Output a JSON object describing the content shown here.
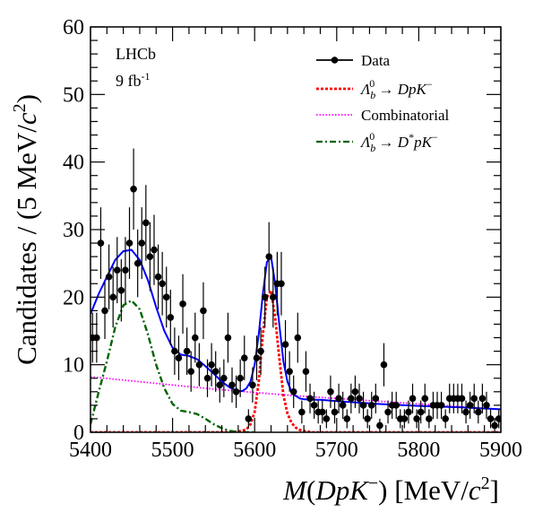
{
  "chart_data": {
    "type": "scatter",
    "xlabel": "M(DpK⁻) [MeV/c²]",
    "ylabel": "Candidates / (5 MeV/c²)",
    "xlim": [
      5400,
      5900
    ],
    "ylim": [
      0,
      60
    ],
    "xticks": [
      "5400",
      "5500",
      "5600",
      "5700",
      "5800",
      "5900"
    ],
    "yticks": [
      "0",
      "10",
      "20",
      "30",
      "40",
      "50",
      "60"
    ],
    "annotations": [
      "LHCb",
      "9 fb⁻¹"
    ],
    "legend": {
      "placement": "top-right",
      "entries": [
        "Data",
        "Λ⁰b → DpK⁻",
        "Combinatorial",
        "Λ⁰b → D*pK⁻"
      ]
    },
    "series": [
      {
        "name": "Data",
        "style": "points-with-errors",
        "color": "#000000",
        "x": [
          5402.5,
          5407.5,
          5412.5,
          5417.5,
          5422.5,
          5427.5,
          5432.5,
          5437.5,
          5442.5,
          5447.5,
          5452.5,
          5457.5,
          5462.5,
          5467.5,
          5472.5,
          5477.5,
          5482.5,
          5487.5,
          5492.5,
          5497.5,
          5502.5,
          5507.5,
          5512.5,
          5517.5,
          5522.5,
          5527.5,
          5532.5,
          5537.5,
          5542.5,
          5547.5,
          5552.5,
          5557.5,
          5562.5,
          5567.5,
          5572.5,
          5577.5,
          5582.5,
          5587.5,
          5592.5,
          5597.5,
          5602.5,
          5607.5,
          5612.5,
          5617.5,
          5622.5,
          5627.5,
          5632.5,
          5637.5,
          5642.5,
          5647.5,
          5652.5,
          5657.5,
          5662.5,
          5667.5,
          5672.5,
          5677.5,
          5682.5,
          5687.5,
          5692.5,
          5697.5,
          5702.5,
          5707.5,
          5712.5,
          5717.5,
          5722.5,
          5727.5,
          5732.5,
          5737.5,
          5742.5,
          5747.5,
          5752.5,
          5757.5,
          5762.5,
          5767.5,
          5772.5,
          5777.5,
          5782.5,
          5787.5,
          5792.5,
          5797.5,
          5802.5,
          5807.5,
          5812.5,
          5817.5,
          5822.5,
          5827.5,
          5832.5,
          5837.5,
          5842.5,
          5847.5,
          5852.5,
          5857.5,
          5862.5,
          5867.5,
          5872.5,
          5877.5,
          5882.5,
          5887.5,
          5892.5,
          5897.5
        ],
        "y": [
          14,
          14,
          28,
          18,
          23,
          20,
          24,
          21,
          24,
          28,
          36,
          25,
          28,
          31,
          26,
          27,
          23,
          22,
          20,
          17,
          12,
          11,
          19,
          12,
          9,
          14,
          10,
          18,
          8,
          10,
          9,
          7,
          8,
          14,
          7,
          6,
          8,
          11,
          2,
          7,
          11,
          12,
          20,
          26,
          20,
          22,
          22,
          13,
          9,
          6,
          14,
          3,
          9,
          5,
          4,
          3,
          3,
          2,
          6,
          3,
          5,
          4,
          2,
          5,
          6,
          5,
          4,
          2,
          4,
          5,
          1,
          10,
          3,
          4,
          4,
          2,
          2,
          3,
          5,
          2,
          3,
          5,
          2,
          4,
          4,
          4,
          2,
          5,
          5,
          5,
          5,
          3,
          4,
          5,
          3,
          5,
          4,
          2,
          1,
          2
        ],
        "yerr": [
          3.7,
          3.7,
          5.3,
          4.2,
          4.8,
          4.5,
          4.9,
          4.6,
          4.9,
          5.3,
          6.0,
          5.0,
          5.3,
          5.6,
          5.1,
          5.2,
          4.8,
          4.7,
          4.5,
          4.1,
          3.5,
          3.3,
          4.4,
          3.5,
          3.0,
          3.7,
          3.2,
          4.2,
          2.8,
          3.2,
          3.0,
          2.6,
          2.8,
          3.7,
          2.6,
          2.4,
          2.8,
          3.3,
          1.4,
          2.6,
          3.3,
          3.5,
          4.5,
          5.1,
          4.5,
          4.7,
          4.7,
          3.6,
          3.0,
          2.4,
          3.7,
          1.7,
          3.0,
          2.2,
          2.0,
          1.7,
          1.7,
          1.4,
          2.4,
          1.7,
          2.2,
          2.0,
          1.4,
          2.2,
          2.4,
          2.2,
          2.0,
          1.4,
          2.0,
          2.2,
          1.0,
          3.2,
          1.7,
          2.0,
          2.0,
          1.4,
          1.4,
          1.7,
          2.2,
          1.4,
          1.7,
          2.2,
          1.4,
          2.0,
          2.0,
          2.0,
          1.4,
          2.2,
          2.2,
          2.2,
          2.2,
          1.7,
          2.0,
          2.2,
          1.7,
          2.2,
          2.0,
          1.4,
          1.0,
          1.4
        ]
      },
      {
        "name": "Λ⁰b → DpK⁻",
        "style": "dashed",
        "color": "#ff0000",
        "x": [
          5400,
          5560,
          5580,
          5590,
          5595,
          5600,
          5605,
          5610,
          5615,
          5620,
          5625,
          5630,
          5635,
          5640,
          5645,
          5650,
          5655,
          5660,
          5665,
          5670,
          5680,
          5900
        ],
        "y": [
          0,
          0,
          0.1,
          0.4,
          1.2,
          3.0,
          7.5,
          14.5,
          20.0,
          21.0,
          17.0,
          11.0,
          5.5,
          2.8,
          1.4,
          0.7,
          0.35,
          0.2,
          0.1,
          0,
          0,
          0
        ]
      },
      {
        "name": "Combinatorial",
        "style": "dotted",
        "color": "#ff00ff",
        "x": [
          5400,
          5450,
          5500,
          5550,
          5600,
          5650,
          5700,
          5750,
          5800,
          5850,
          5900
        ],
        "y": [
          8.2,
          7.6,
          7.0,
          6.4,
          5.9,
          5.4,
          5.0,
          4.6,
          4.2,
          3.8,
          3.4
        ]
      },
      {
        "name": "Λ⁰b → D*pK⁻",
        "style": "dash-dot",
        "color": "#006400",
        "x": [
          5400,
          5410,
          5420,
          5430,
          5440,
          5450,
          5460,
          5470,
          5480,
          5490,
          5500,
          5510,
          5520,
          5530,
          5540,
          5550,
          5560,
          5570,
          5580,
          5590,
          5600
        ],
        "y": [
          1.2,
          6.0,
          10.5,
          15.5,
          18.8,
          19.5,
          18.2,
          14.5,
          10.0,
          6.5,
          4.2,
          3.2,
          3.0,
          2.7,
          2.0,
          1.2,
          0.6,
          0.2,
          0.05,
          0,
          0
        ]
      },
      {
        "name": "Total fit",
        "style": "solid",
        "color": "#0000ff",
        "x": [
          5400,
          5410,
          5420,
          5430,
          5440,
          5450,
          5460,
          5470,
          5480,
          5490,
          5500,
          5510,
          5520,
          5530,
          5540,
          5550,
          5560,
          5570,
          5580,
          5585,
          5590,
          5595,
          5600,
          5605,
          5610,
          5615,
          5620,
          5625,
          5630,
          5635,
          5640,
          5645,
          5650,
          5655,
          5660,
          5670,
          5680,
          5700,
          5750,
          5800,
          5850,
          5900
        ],
        "y": [
          17.5,
          20.5,
          23.0,
          25.5,
          26.8,
          27.0,
          25.5,
          22.5,
          18.5,
          15.0,
          12.5,
          11.5,
          11.3,
          10.8,
          9.8,
          8.7,
          7.5,
          6.6,
          6.1,
          6.1,
          6.5,
          7.5,
          10.0,
          14.5,
          20.5,
          25.2,
          26.0,
          22.0,
          16.0,
          10.5,
          7.5,
          6.0,
          5.4,
          5.0,
          4.9,
          4.8,
          4.8,
          4.6,
          4.2,
          3.9,
          3.7,
          3.4
        ]
      }
    ]
  }
}
